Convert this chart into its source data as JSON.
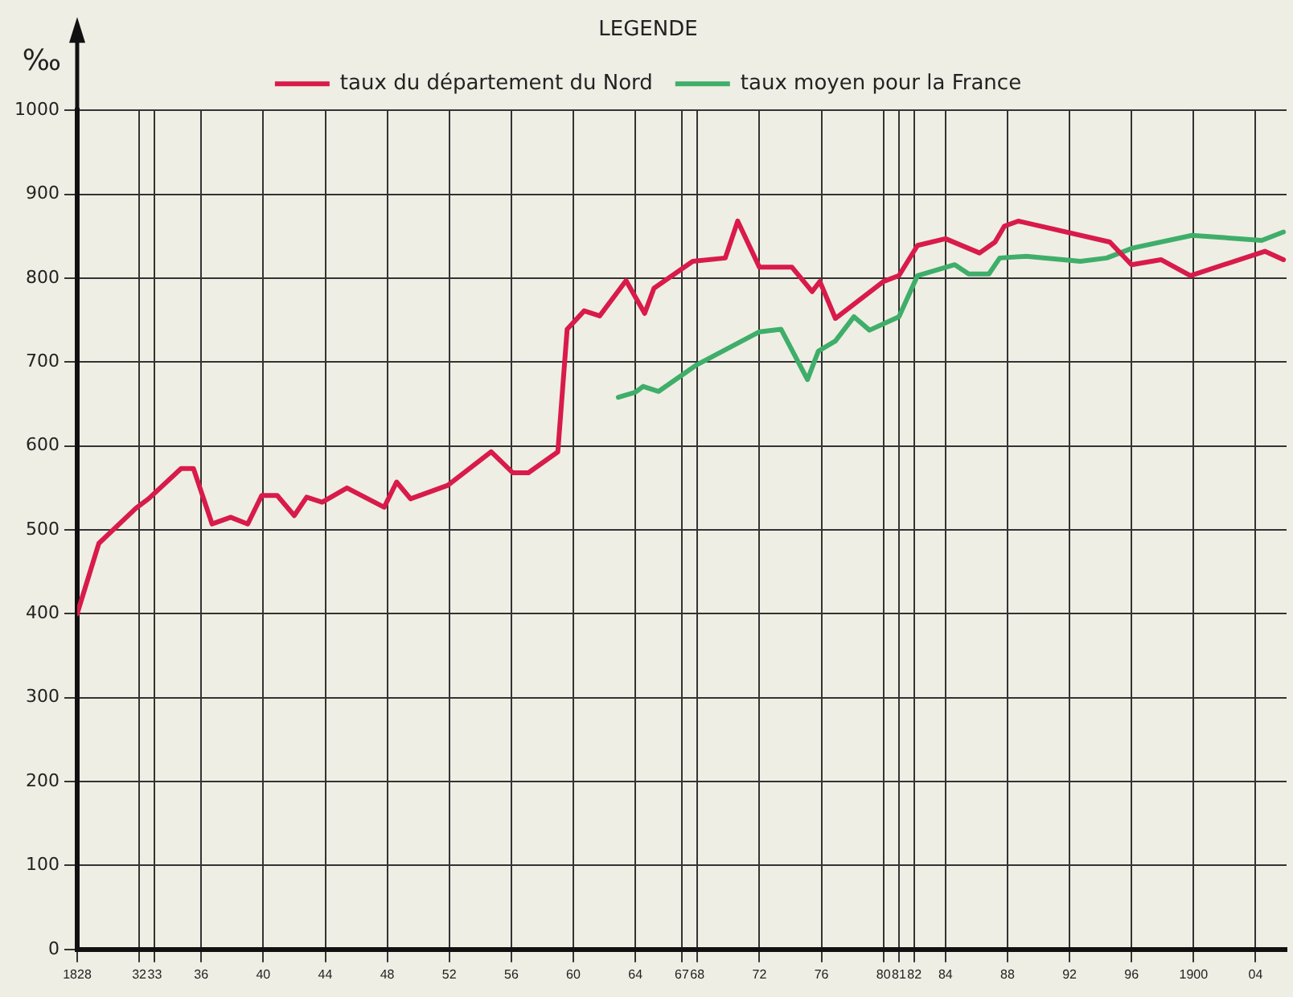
{
  "chart_data": {
    "type": "line",
    "ylabel": "‰",
    "legend_title": "LEGENDE",
    "legend": "top",
    "grid": true,
    "marker": "none",
    "line_style": "solid",
    "xlim": [
      1828,
      1906
    ],
    "ylim": [
      0,
      1000
    ],
    "yticks": [
      0,
      100,
      200,
      300,
      400,
      500,
      600,
      700,
      800,
      900,
      1000
    ],
    "xticks": [
      {
        "value": 1828,
        "label": "1828"
      },
      {
        "value": 1832,
        "label": "32"
      },
      {
        "value": 1833,
        "label": "33"
      },
      {
        "value": 1836,
        "label": "36"
      },
      {
        "value": 1840,
        "label": "40"
      },
      {
        "value": 1844,
        "label": "44"
      },
      {
        "value": 1848,
        "label": "48"
      },
      {
        "value": 1852,
        "label": "52"
      },
      {
        "value": 1856,
        "label": "56"
      },
      {
        "value": 1860,
        "label": "60"
      },
      {
        "value": 1864,
        "label": "64"
      },
      {
        "value": 1867,
        "label": "67"
      },
      {
        "value": 1868,
        "label": "68"
      },
      {
        "value": 1872,
        "label": "72"
      },
      {
        "value": 1876,
        "label": "76"
      },
      {
        "value": 1880,
        "label": "80"
      },
      {
        "value": 1881,
        "label": "81"
      },
      {
        "value": 1882,
        "label": "82"
      },
      {
        "value": 1884,
        "label": "84"
      },
      {
        "value": 1888,
        "label": "88"
      },
      {
        "value": 1892,
        "label": "92"
      },
      {
        "value": 1896,
        "label": "96"
      },
      {
        "value": 1900,
        "label": "1900"
      },
      {
        "value": 1904,
        "label": "04"
      }
    ],
    "series": [
      {
        "name": "taux du département du Nord",
        "color": "#d81b4a",
        "x": [
          1828,
          1829.4,
          1831.8,
          1832.6,
          1834.7,
          1835.5,
          1836.7,
          1837.9,
          1839,
          1839.9,
          1840.9,
          1842,
          1842.8,
          1843.8,
          1845.4,
          1847.8,
          1848.6,
          1849.5,
          1851.9,
          1854.7,
          1856.1,
          1857.1,
          1859,
          1859.6,
          1860.7,
          1861.7,
          1863.4,
          1864.6,
          1865.2,
          1867.7,
          1869.8,
          1870.6,
          1872,
          1874.1,
          1875.4,
          1875.9,
          1876.9,
          1880,
          1881,
          1882.2,
          1884,
          1886.2,
          1887.2,
          1887.8,
          1888.7,
          1894.6,
          1896,
          1897.9,
          1899.8,
          1904.6,
          1905.8
        ],
        "values": [
          400,
          484,
          526,
          537,
          573,
          573,
          507,
          515,
          507,
          541,
          541,
          517,
          539,
          533,
          550,
          527,
          557,
          537,
          553,
          593,
          568,
          568,
          593,
          739,
          761,
          755,
          797,
          758,
          788,
          820,
          824,
          868,
          813,
          813,
          784,
          796,
          752,
          796,
          803,
          839,
          847,
          830,
          843,
          862,
          868,
          843,
          816,
          822,
          803,
          832,
          822
        ]
      },
      {
        "name": "taux moyen pour la France",
        "color": "#3fae6a",
        "x": [
          1862.9,
          1864,
          1864.5,
          1865.5,
          1867.9,
          1872,
          1873.4,
          1875.1,
          1875.8,
          1876.9,
          1878.1,
          1879.1,
          1881,
          1882.2,
          1884.6,
          1885.5,
          1886.8,
          1887.5,
          1889.2,
          1892.7,
          1894.4,
          1896.1,
          1899.9,
          1904.4,
          1905.8
        ],
        "values": [
          658,
          664,
          671,
          665,
          696,
          736,
          739,
          679,
          713,
          725,
          754,
          738,
          754,
          803,
          816,
          805,
          805,
          824,
          826,
          820,
          824,
          836,
          851,
          845,
          855
        ]
      }
    ]
  }
}
